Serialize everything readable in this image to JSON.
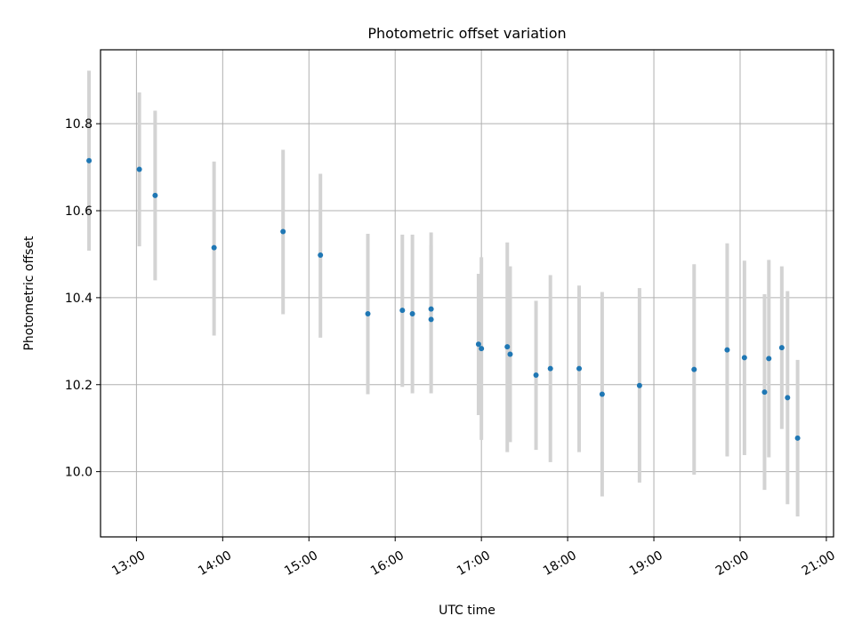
{
  "chart_data": {
    "type": "scatter",
    "title": "Photometric offset variation",
    "xlabel": "UTC time",
    "ylabel": "Photometric offset",
    "grid": true,
    "xlim": [
      "12:35",
      "21:05"
    ],
    "ylim": [
      9.85,
      10.97
    ],
    "xticks": [
      "13:00",
      "14:00",
      "15:00",
      "16:00",
      "17:00",
      "18:00",
      "19:00",
      "20:00",
      "21:00"
    ],
    "yticks": [
      10.0,
      10.2,
      10.4,
      10.6,
      10.8
    ],
    "colors": {
      "point": "#1f77b4",
      "errorbar": "#d3d3d3",
      "grid": "#b0b0b0"
    },
    "series": [
      {
        "points": [
          {
            "x": "12:27",
            "y": 10.715,
            "ylo": 10.508,
            "yhi": 10.922
          },
          {
            "x": "13:02",
            "y": 10.695,
            "ylo": 10.518,
            "yhi": 10.872
          },
          {
            "x": "13:13",
            "y": 10.635,
            "ylo": 10.44,
            "yhi": 10.83
          },
          {
            "x": "13:54",
            "y": 10.515,
            "ylo": 10.313,
            "yhi": 10.713
          },
          {
            "x": "14:42",
            "y": 10.552,
            "ylo": 10.362,
            "yhi": 10.74
          },
          {
            "x": "15:08",
            "y": 10.498,
            "ylo": 10.308,
            "yhi": 10.685
          },
          {
            "x": "15:41",
            "y": 10.363,
            "ylo": 10.178,
            "yhi": 10.547
          },
          {
            "x": "16:05",
            "y": 10.371,
            "ylo": 10.195,
            "yhi": 10.545
          },
          {
            "x": "16:12",
            "y": 10.363,
            "ylo": 10.18,
            "yhi": 10.545
          },
          {
            "x": "16:25",
            "y": 10.374,
            "ylo": 10.2,
            "yhi": 10.55
          },
          {
            "x": "16:25",
            "y": 10.35,
            "ylo": 10.18,
            "yhi": 10.52
          },
          {
            "x": "16:58",
            "y": 10.293,
            "ylo": 10.13,
            "yhi": 10.455
          },
          {
            "x": "17:00",
            "y": 10.283,
            "ylo": 10.073,
            "yhi": 10.493
          },
          {
            "x": "17:18",
            "y": 10.287,
            "ylo": 10.045,
            "yhi": 10.527
          },
          {
            "x": "17:20",
            "y": 10.27,
            "ylo": 10.068,
            "yhi": 10.472
          },
          {
            "x": "17:38",
            "y": 10.222,
            "ylo": 10.05,
            "yhi": 10.393
          },
          {
            "x": "17:48",
            "y": 10.237,
            "ylo": 10.022,
            "yhi": 10.452
          },
          {
            "x": "18:08",
            "y": 10.237,
            "ylo": 10.045,
            "yhi": 10.428
          },
          {
            "x": "18:24",
            "y": 10.178,
            "ylo": 9.943,
            "yhi": 10.413
          },
          {
            "x": "18:50",
            "y": 10.198,
            "ylo": 9.975,
            "yhi": 10.422
          },
          {
            "x": "19:28",
            "y": 10.235,
            "ylo": 9.993,
            "yhi": 10.477
          },
          {
            "x": "19:51",
            "y": 10.28,
            "ylo": 10.035,
            "yhi": 10.525
          },
          {
            "x": "20:03",
            "y": 10.262,
            "ylo": 10.038,
            "yhi": 10.485
          },
          {
            "x": "20:17",
            "y": 10.183,
            "ylo": 9.958,
            "yhi": 10.408
          },
          {
            "x": "20:20",
            "y": 10.26,
            "ylo": 10.033,
            "yhi": 10.487
          },
          {
            "x": "20:29",
            "y": 10.285,
            "ylo": 10.098,
            "yhi": 10.472
          },
          {
            "x": "20:33",
            "y": 10.17,
            "ylo": 9.925,
            "yhi": 10.415
          },
          {
            "x": "20:40",
            "y": 10.077,
            "ylo": 9.897,
            "yhi": 10.257
          }
        ]
      }
    ]
  }
}
